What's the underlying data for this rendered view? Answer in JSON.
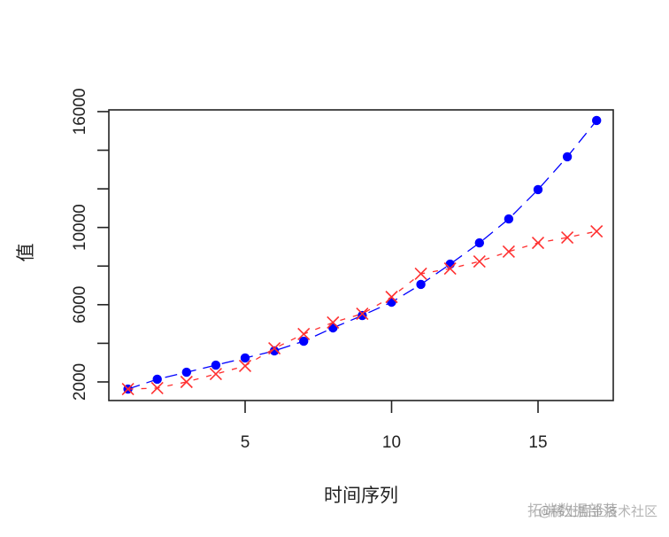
{
  "chart_data": {
    "type": "line",
    "title": "",
    "xlabel": "时间序列",
    "ylabel": "值",
    "x": [
      1,
      2,
      3,
      4,
      5,
      6,
      7,
      8,
      9,
      10,
      11,
      12,
      13,
      14,
      15,
      16,
      17
    ],
    "xlim": [
      0.36,
      17.64
    ],
    "ylim": [
      1040,
      16130
    ],
    "x_ticks": [
      5,
      10,
      15
    ],
    "y_ticks": [
      2000,
      4000,
      6000,
      8000,
      10000,
      12000,
      14000,
      16000
    ],
    "y_tick_labels": [
      "2000",
      "",
      "6000",
      "",
      "10000",
      "",
      "",
      "16000"
    ],
    "grid": false,
    "legend": null,
    "series": [
      {
        "name": "blue-points",
        "color": "#0000ff",
        "marker": "filled-circle",
        "line_style": "longdash",
        "values": [
          1630,
          2140,
          2500,
          2870,
          3240,
          3610,
          4110,
          4800,
          5440,
          6130,
          7050,
          8100,
          9200,
          10440,
          11960,
          13660,
          15540
        ]
      },
      {
        "name": "red-crosses",
        "color": "#ff3030",
        "marker": "x-cross",
        "line_style": "dashed",
        "values": [
          1630,
          1680,
          2000,
          2410,
          2830,
          3740,
          4480,
          5080,
          5530,
          6400,
          7600,
          7870,
          8240,
          8750,
          9200,
          9480,
          9800
        ]
      }
    ]
  },
  "watermark": {
    "line1": "拓端数据部落",
    "line2": "@稀土掘金技术社区"
  }
}
